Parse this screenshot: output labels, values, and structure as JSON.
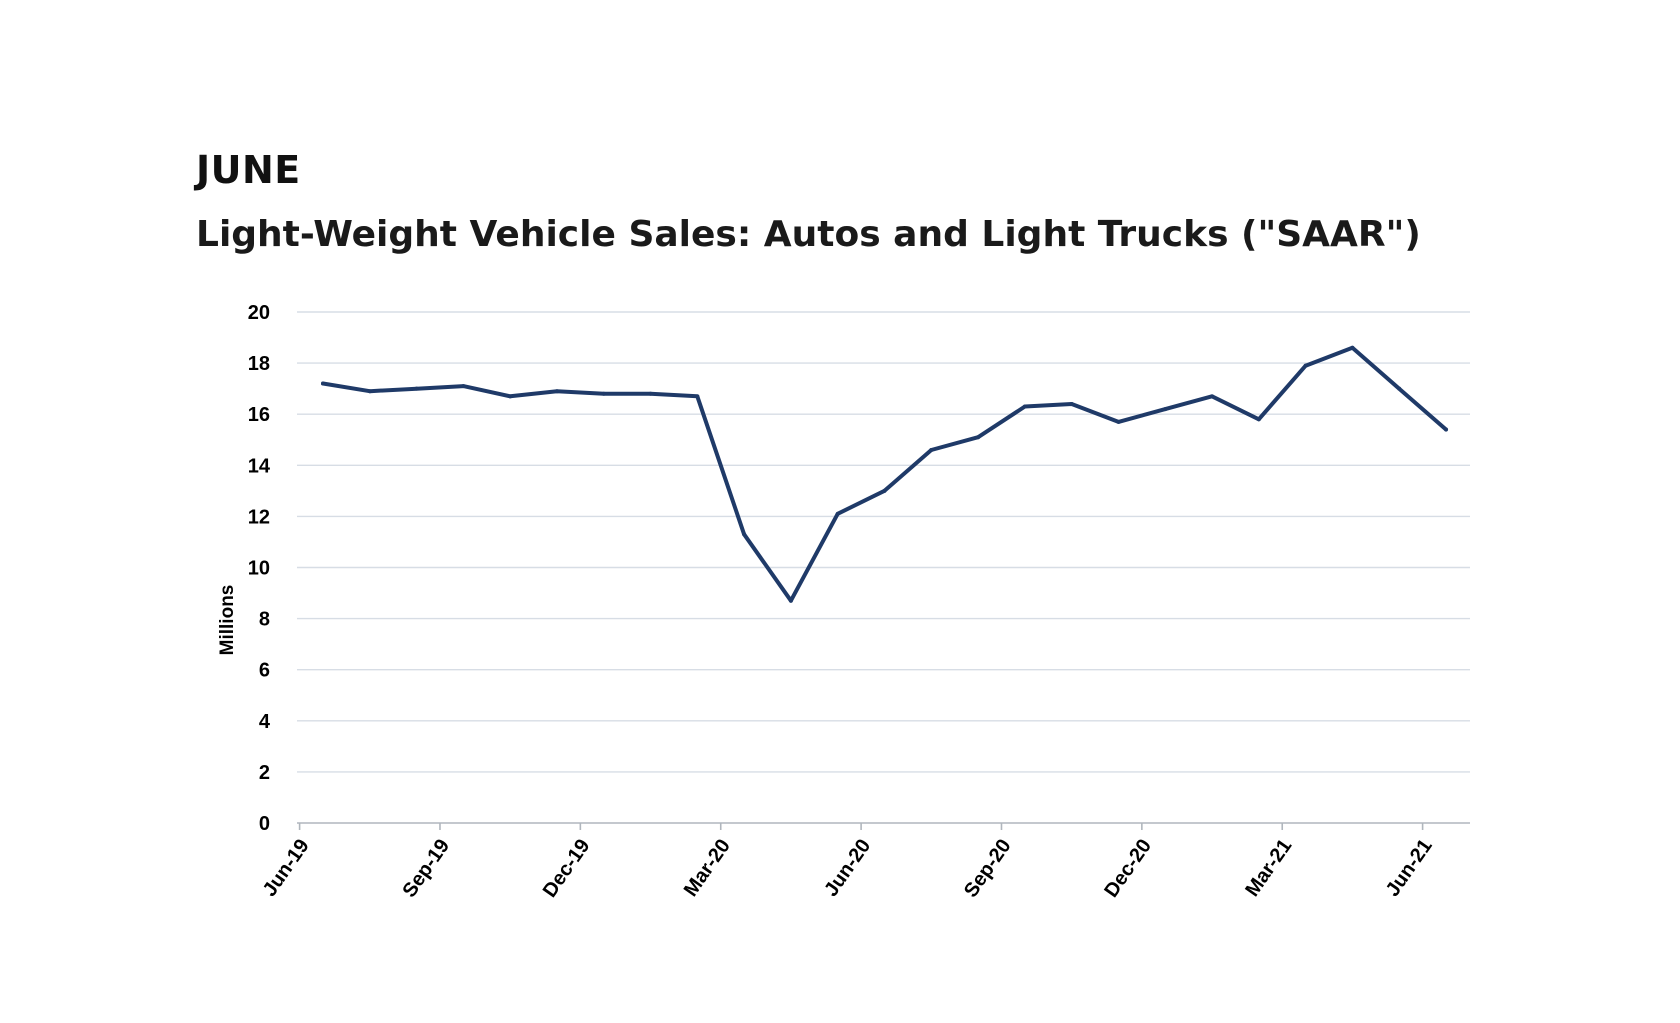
{
  "heading": "JUNE",
  "subtitle": "Light-Weight Vehicle Sales: Autos and Light Trucks (\"SAAR\")",
  "colors": {
    "line": "#1f3a68",
    "grid": "#d7dde5",
    "axis": "#b0b6bd",
    "text": "#000000"
  },
  "chart_data": {
    "type": "line",
    "title": "",
    "xlabel": "",
    "ylabel": "Millions",
    "ylim": [
      0,
      20
    ],
    "yticks": [
      0,
      2,
      4,
      6,
      8,
      10,
      12,
      14,
      16,
      18,
      20
    ],
    "grid": true,
    "x": [
      "Jun-19",
      "Jul-19",
      "Aug-19",
      "Sep-19",
      "Oct-19",
      "Nov-19",
      "Dec-19",
      "Jan-20",
      "Feb-20",
      "Mar-20",
      "Apr-20",
      "May-20",
      "Jun-20",
      "Jul-20",
      "Aug-20",
      "Sep-20",
      "Oct-20",
      "Nov-20",
      "Dec-20",
      "Jan-21",
      "Feb-21",
      "Mar-21",
      "Apr-21",
      "May-21",
      "Jun-21"
    ],
    "xtick_labels": [
      "Jun-19",
      "Sep-19",
      "Dec-19",
      "Mar-20",
      "Jun-20",
      "Sep-20",
      "Dec-20",
      "Mar-21",
      "Jun-21"
    ],
    "series": [
      {
        "values": [
          17.2,
          16.9,
          17.0,
          17.1,
          16.7,
          16.9,
          16.8,
          16.8,
          16.7,
          11.3,
          8.7,
          12.1,
          13.0,
          14.6,
          15.1,
          16.3,
          16.4,
          15.7,
          16.2,
          16.7,
          15.8,
          17.9,
          18.6,
          17.0,
          15.4
        ]
      }
    ]
  }
}
